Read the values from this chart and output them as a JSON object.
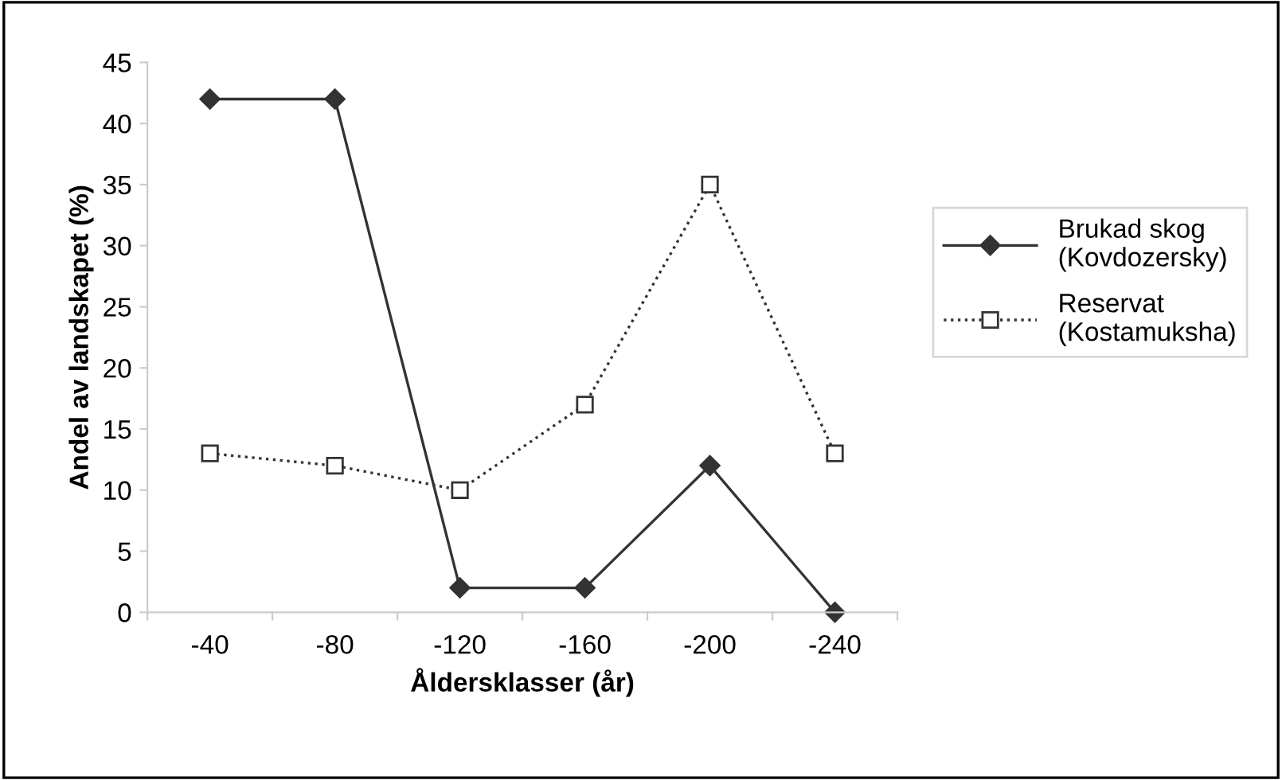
{
  "chart_data": {
    "type": "line",
    "xlabel": "Åldersklasser (år)",
    "ylabel": "Andel av landskapet (%)",
    "categories": [
      "-40",
      "-80",
      "-120",
      "-160",
      "-200",
      "-240"
    ],
    "series": [
      {
        "name": "Brukad skog\n(Kovdozersky)",
        "color": "#333333",
        "marker": "diamond",
        "line_style": "solid",
        "values": [
          42,
          42,
          2,
          2,
          12,
          0
        ]
      },
      {
        "name": "Reservat\n(Kostamuksha)",
        "color": "#333333",
        "marker": "square",
        "line_style": "dotted",
        "values": [
          13,
          12,
          10,
          17,
          35,
          13
        ]
      }
    ],
    "ylim": [
      0,
      45
    ],
    "yticks": [
      0,
      5,
      10,
      15,
      20,
      25,
      30,
      35,
      40,
      45
    ],
    "legend": "right",
    "grid": false
  }
}
